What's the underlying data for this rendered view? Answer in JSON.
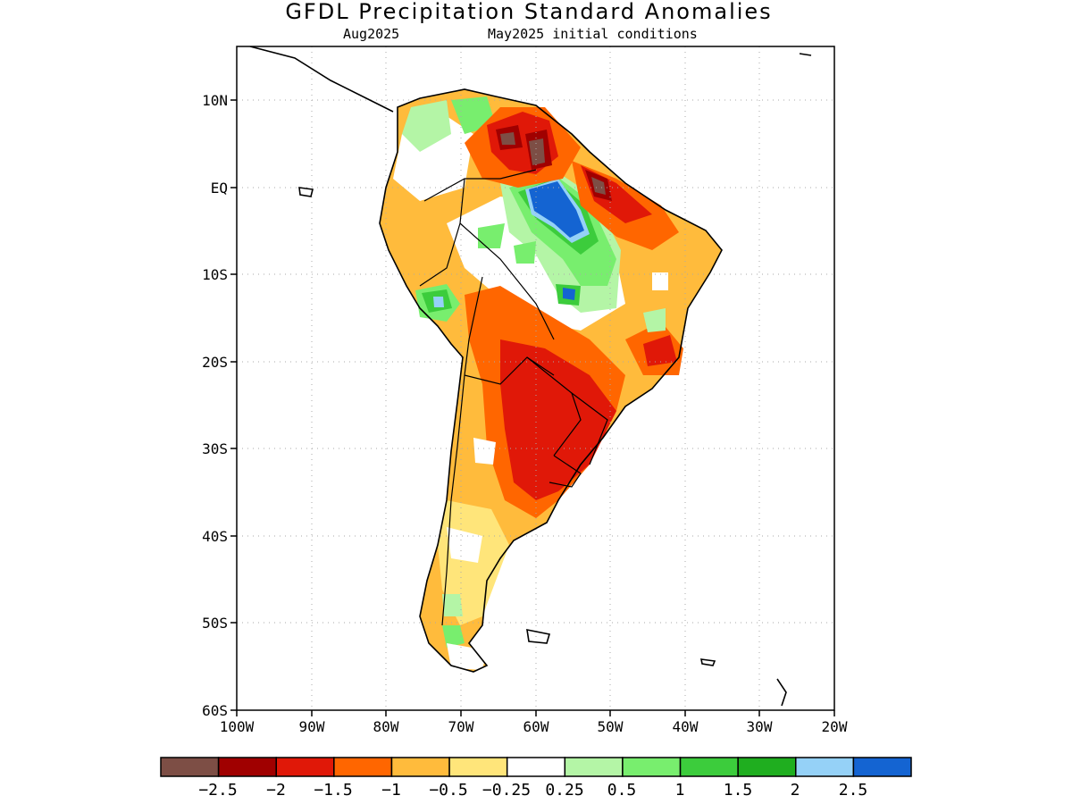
{
  "title": "GFDL Precipitation Standard Anomalies",
  "subtitle_left": "Aug2025",
  "subtitle_right": "May2025 initial conditions",
  "lat_ticks": [
    "10N",
    "EQ",
    "10S",
    "20S",
    "30S",
    "40S",
    "50S",
    "60S"
  ],
  "lon_ticks": [
    "100W",
    "90W",
    "80W",
    "70W",
    "60W",
    "50W",
    "40W",
    "30W",
    "20W"
  ],
  "colorbar": {
    "colors": [
      "#7d4e45",
      "#a00000",
      "#e01808",
      "#ff6600",
      "#ffbb3c",
      "#ffe57a",
      "#ffffff",
      "#b4f5a6",
      "#78ee6e",
      "#3ccc3c",
      "#1fae1f",
      "#95d1f7",
      "#1464d2"
    ],
    "labels": [
      "−2.5",
      "−2",
      "−1.5",
      "−1",
      "−0.5",
      "−0.25",
      "0.25",
      "0.5",
      "1",
      "1.5",
      "2",
      "2.5"
    ]
  }
}
